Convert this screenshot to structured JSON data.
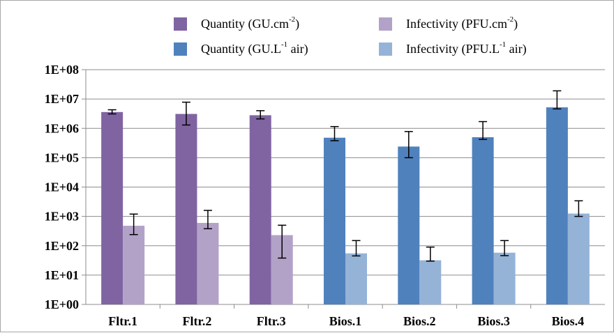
{
  "chart_data": {
    "type": "bar",
    "y_scale": "log10",
    "ylim": [
      1,
      100000000
    ],
    "y_tick_labels": [
      "1E+00",
      "1E+01",
      "1E+02",
      "1E+03",
      "1E+04",
      "1E+05",
      "1E+06",
      "1E+07",
      "1E+08"
    ],
    "categories": [
      "Fltr.1",
      "Fltr.2",
      "Fltr.3",
      "Bios.1",
      "Bios.2",
      "Bios.3",
      "Bios.4"
    ],
    "grid": true,
    "legend_position": "top",
    "series": [
      {
        "name": "Quantity (GU.cm-2)",
        "legend_prefix": "Quantity (GU.cm",
        "legend_sup": "-2",
        "legend_suffix": ")",
        "color": "#8064a2",
        "points": [
          {
            "category": "Fltr.1",
            "value": 3600000,
            "err_low": 3100000,
            "err_high": 4300000
          },
          {
            "category": "Fltr.2",
            "value": 3100000,
            "err_low": 1300000,
            "err_high": 7800000
          },
          {
            "category": "Fltr.3",
            "value": 2800000,
            "err_low": 2100000,
            "err_high": 4000000
          }
        ]
      },
      {
        "name": "Infectivity (PFU.cm-2)",
        "legend_prefix": "Infectivity (PFU.cm",
        "legend_sup": "-2",
        "legend_suffix": ")",
        "color": "#b3a2c7",
        "points": [
          {
            "category": "Fltr.1",
            "value": 480,
            "err_low": 240,
            "err_high": 1200
          },
          {
            "category": "Fltr.2",
            "value": 600,
            "err_low": 380,
            "err_high": 1600
          },
          {
            "category": "Fltr.3",
            "value": 230,
            "err_low": 38,
            "err_high": 500
          }
        ]
      },
      {
        "name": "Quantity (GU.L-1 air)",
        "legend_prefix": "Quantity (GU.L",
        "legend_sup": "-1",
        "legend_suffix": " air)",
        "color": "#4f81bd",
        "points": [
          {
            "category": "Bios.1",
            "value": 480000,
            "err_low": 380000,
            "err_high": 1150000
          },
          {
            "category": "Bios.2",
            "value": 240000,
            "err_low": 100000,
            "err_high": 780000
          },
          {
            "category": "Bios.3",
            "value": 500000,
            "err_low": 420000,
            "err_high": 1700000
          },
          {
            "category": "Bios.4",
            "value": 5200000,
            "err_low": 4600000,
            "err_high": 19000000
          }
        ]
      },
      {
        "name": "Infectivity (PFU.L-1 air)",
        "legend_prefix": "Infectivity (PFU.L",
        "legend_sup": "-1",
        "legend_suffix": " air)",
        "color": "#95b3d7",
        "points": [
          {
            "category": "Bios.1",
            "value": 55,
            "err_low": 45,
            "err_high": 150
          },
          {
            "category": "Bios.2",
            "value": 32,
            "err_low": 30,
            "err_high": 90
          },
          {
            "category": "Bios.3",
            "value": 58,
            "err_low": 46,
            "err_high": 150
          },
          {
            "category": "Bios.4",
            "value": 1250,
            "err_low": 1000,
            "err_high": 3400
          }
        ]
      }
    ]
  }
}
